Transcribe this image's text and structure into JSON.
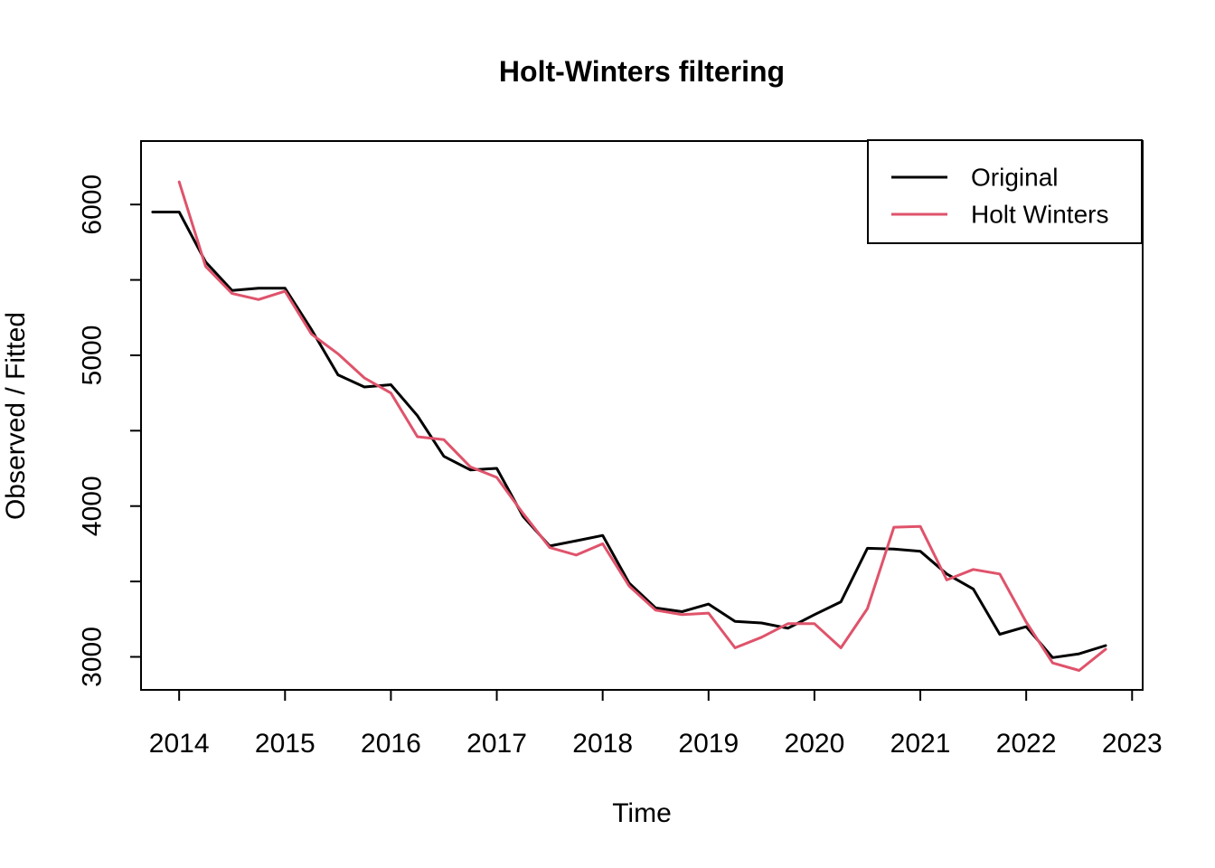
{
  "title": "Holt-Winters filtering",
  "axes": {
    "x_label": "Time",
    "y_label": "Observed / Fitted",
    "x_ticks": [
      2014,
      2015,
      2016,
      2017,
      2018,
      2019,
      2020,
      2021,
      2022,
      2023
    ],
    "y_ticks": [
      3000,
      3500,
      4000,
      4500,
      5000,
      5500,
      6000
    ],
    "y_tick_labels": [
      "3000",
      "",
      "4000",
      "",
      "5000",
      "",
      "6000"
    ]
  },
  "legend": {
    "items": [
      {
        "label": "Original",
        "color": "#000000"
      },
      {
        "label": "Holt Winters",
        "color": "#DF536B"
      }
    ]
  },
  "chart_data": {
    "type": "line",
    "title": "Holt-Winters filtering",
    "xlabel": "Time",
    "ylabel": "Observed / Fitted",
    "x_range": [
      2013.64,
      2023.1
    ],
    "y_range": [
      2781,
      6421
    ],
    "grid": "off",
    "legend_position": "topright",
    "series": [
      {
        "name": "Original",
        "color": "#000000",
        "x": [
          2013.75,
          2014.0,
          2014.25,
          2014.5,
          2014.75,
          2015.0,
          2015.25,
          2015.5,
          2015.75,
          2016.0,
          2016.25,
          2016.5,
          2016.75,
          2017.0,
          2017.25,
          2017.5,
          2017.75,
          2018.0,
          2018.25,
          2018.5,
          2018.75,
          2019.0,
          2019.25,
          2019.5,
          2019.75,
          2020.0,
          2020.25,
          2020.5,
          2020.75,
          2021.0,
          2021.25,
          2021.5,
          2021.75,
          2022.0,
          2022.25,
          2022.5,
          2022.75
        ],
        "values": [
          5950,
          5950,
          5620,
          5430,
          5445,
          5445,
          5170,
          4870,
          4790,
          4805,
          4600,
          4330,
          4240,
          4250,
          3930,
          3735,
          3770,
          3805,
          3490,
          3325,
          3300,
          3350,
          3235,
          3225,
          3190,
          3280,
          3365,
          3720,
          3715,
          3700,
          3550,
          3450,
          3150,
          3200,
          2995,
          3020,
          3075
        ]
      },
      {
        "name": "Holt Winters",
        "color": "#DF536B",
        "x": [
          2014.0,
          2014.25,
          2014.5,
          2014.75,
          2015.0,
          2015.25,
          2015.5,
          2015.75,
          2016.0,
          2016.25,
          2016.5,
          2016.75,
          2017.0,
          2017.25,
          2017.5,
          2017.75,
          2018.0,
          2018.25,
          2018.5,
          2018.75,
          2019.0,
          2019.25,
          2019.5,
          2019.75,
          2020.0,
          2020.25,
          2020.5,
          2020.75,
          2021.0,
          2021.25,
          2021.5,
          2021.75,
          2022.0,
          2022.25,
          2022.5,
          2022.75
        ],
        "values": [
          6150,
          5590,
          5410,
          5370,
          5425,
          5140,
          5010,
          4850,
          4750,
          4460,
          4440,
          4260,
          4190,
          3950,
          3725,
          3675,
          3750,
          3470,
          3310,
          3280,
          3290,
          3060,
          3130,
          3220,
          3220,
          3060,
          3320,
          3860,
          3865,
          3510,
          3580,
          3550,
          3230,
          2960,
          2910,
          3050
        ]
      }
    ]
  }
}
